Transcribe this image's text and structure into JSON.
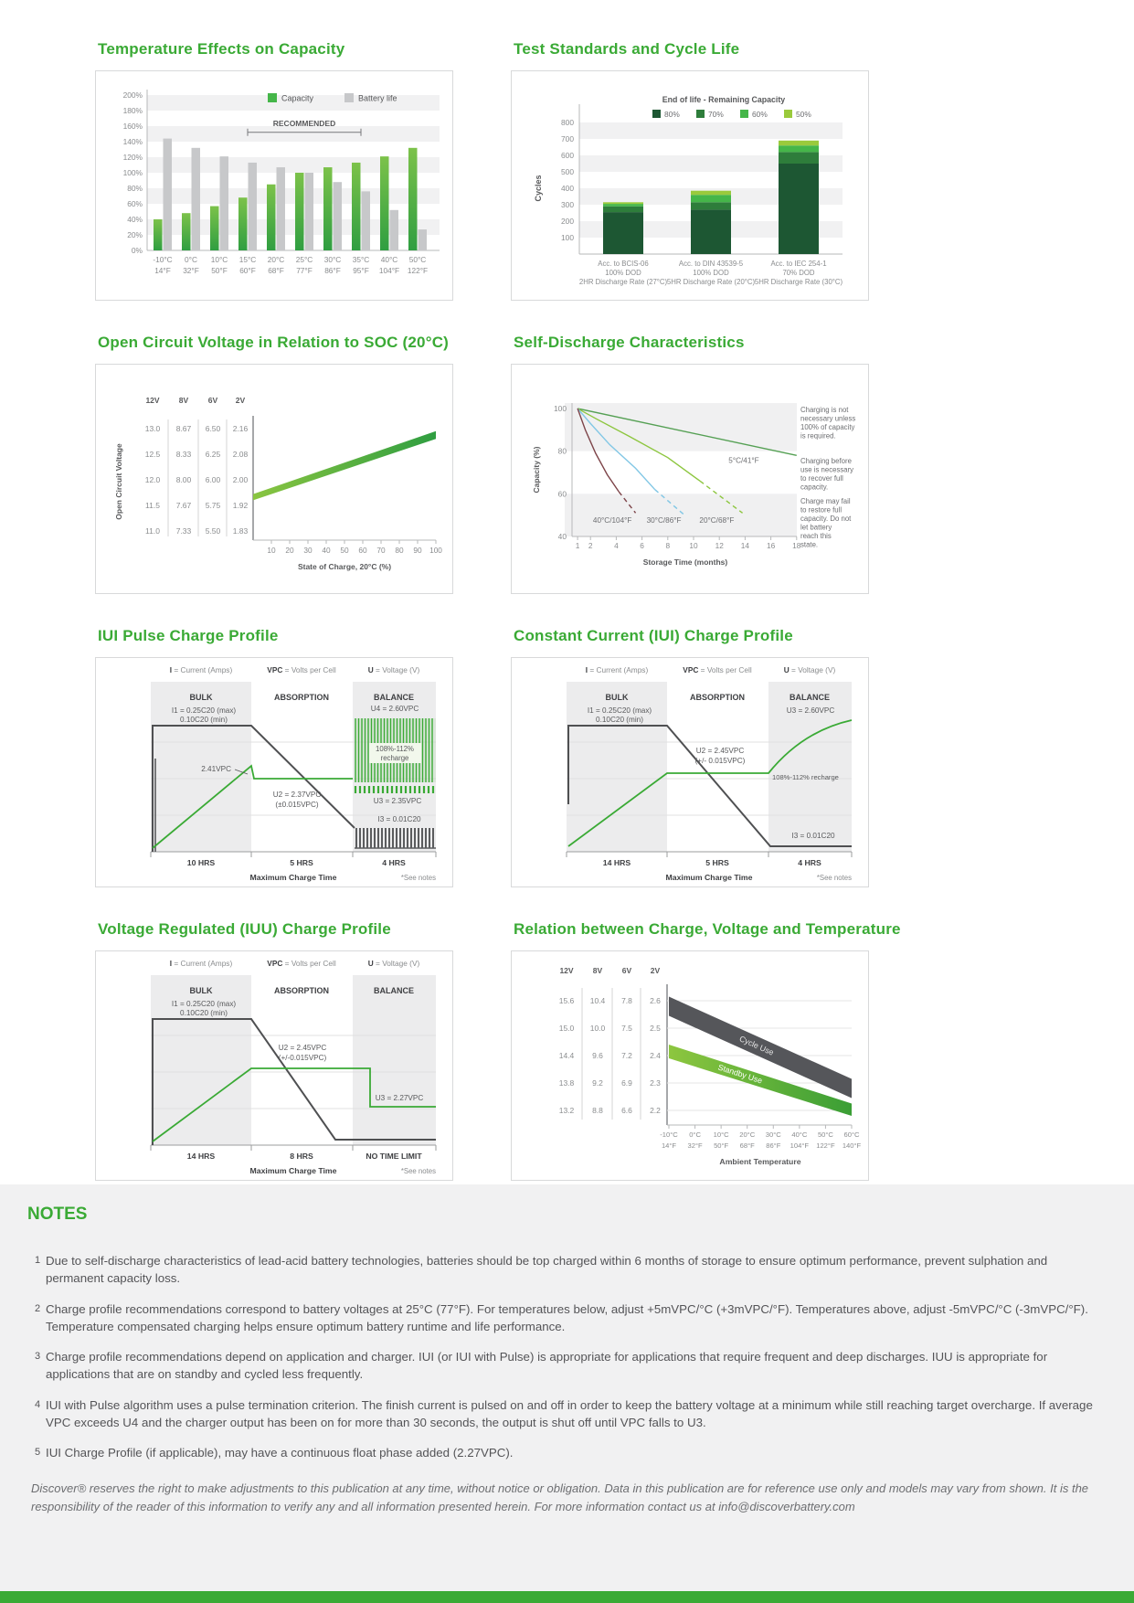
{
  "page": {
    "notes_heading": "NOTES",
    "notes": [
      {
        "num": "1",
        "text": "Due to self-discharge characteristics of lead-acid battery technologies, batteries should be top charged within 6 months of storage to ensure optimum performance, prevent sulphation and permanent capacity loss."
      },
      {
        "num": "2",
        "text": "Charge profile recommendations correspond to battery voltages at 25°C (77°F). For temperatures below, adjust +5mVPC/°C (+3mVPC/°F). Temperatures above, adjust -5mVPC/°C (-3mVPC/°F). Temperature compensated charging helps ensure optimum battery runtime and life performance."
      },
      {
        "num": "3",
        "text": "Charge profile recommendations depend on application and charger. IUI (or IUI with Pulse) is appropriate for applications that require frequent and deep discharges. IUU is appropriate for applications that are on standby and cycled less frequently."
      },
      {
        "num": "4",
        "text": "IUI with Pulse algorithm uses a pulse termination criterion. The finish current is pulsed on and off in order to keep the battery voltage at a minimum while still reaching target overcharge. If average VPC exceeds U4 and the charger output has been on for more than 30 seconds, the output is shut off until VPC falls to U3."
      },
      {
        "num": "5",
        "text": "IUI Charge Profile (if applicable), may have a continuous float phase added (2.27VPC)."
      }
    ],
    "disclaimer": "Discover® reserves the right to make adjustments to this publication at any time, without notice or obligation. Data in this publication are for reference use only and models may vary from shown. It is the responsibility of the reader of this information to verify any and all information presented herein. For more information contact us at info@discoverbattery.com"
  },
  "colors": {
    "brand_green": "#3aaa35",
    "bar_gray": "#c7c8ca",
    "dark_band": "#55565a",
    "notes_bg": "#f1f1f2"
  },
  "chart_data": [
    {
      "renderer": "tempCapacity",
      "type": "bar",
      "title": "Temperature Effects on Capacity",
      "legend": [
        "Capacity",
        "Battery life"
      ],
      "categories_c": [
        "-10°C",
        "0°C",
        "10°C",
        "15°C",
        "20°C",
        "25°C",
        "30°C",
        "35°C",
        "40°C",
        "50°C"
      ],
      "categories_f": [
        "14°F",
        "32°F",
        "50°F",
        "60°F",
        "68°F",
        "77°F",
        "86°F",
        "95°F",
        "104°F",
        "122°F"
      ],
      "bar_top": "#7cc24a",
      "bar_bottom": "#2f9e41",
      "gray": "#c7c8ca",
      "series": [
        {
          "name": "Capacity",
          "values": [
            40,
            48,
            57,
            68,
            85,
            100,
            107,
            113,
            121,
            132
          ]
        },
        {
          "name": "Battery life",
          "values": [
            144,
            132,
            121,
            113,
            107,
            100,
            88,
            76,
            52,
            27
          ]
        }
      ],
      "ylim": [
        0,
        200
      ],
      "ytick_step": 20,
      "ytick_suffix": "%",
      "annotation": {
        "label": "RECOMMENDED",
        "from_index": 3,
        "to_index": 7,
        "at_value": 152
      }
    },
    {
      "renderer": "cycleLife",
      "type": "stacked-bar",
      "title": "Test Standards and Cycle Life",
      "legend_title": "End of life - Remaining Capacity",
      "legend": [
        {
          "label": "80%",
          "color": "#1d5733"
        },
        {
          "label": "70%",
          "color": "#2e7d3b"
        },
        {
          "label": "60%",
          "color": "#45b649"
        },
        {
          "label": "50%",
          "color": "#9aca3c"
        }
      ],
      "ylabel": "Cycles",
      "yticks": [
        100,
        200,
        300,
        400,
        500,
        600,
        700,
        800
      ],
      "categories": [
        [
          "Acc. to BCIS-06",
          "100% DOD",
          "2HR Discharge Rate (27°C)"
        ],
        [
          "Acc. to DIN 43539-5",
          "100% DOD",
          "5HR Discharge Rate (20°C)"
        ],
        [
          "Acc. to IEC 254-1",
          "70% DOD",
          "5HR Discharge Rate (30°C)"
        ]
      ],
      "cumulative": [
        [
          255,
          290,
          305,
          315
        ],
        [
          270,
          315,
          360,
          385
        ],
        [
          550,
          620,
          660,
          690
        ]
      ]
    },
    {
      "renderer": "ocv",
      "type": "band-line",
      "title": "Open Circuit Voltage in Relation to SOC (20°C)",
      "voltage_columns": [
        "12V",
        "8V",
        "6V",
        "2V"
      ],
      "voltage_rows": [
        [
          "13.0",
          "8.67",
          "6.50",
          "2.16"
        ],
        [
          "12.5",
          "8.33",
          "6.25",
          "2.08"
        ],
        [
          "12.0",
          "8.00",
          "6.00",
          "2.00"
        ],
        [
          "11.5",
          "7.67",
          "5.75",
          "1.92"
        ],
        [
          "11.0",
          "7.33",
          "5.50",
          "1.83"
        ]
      ],
      "ylabel": "Open Circuit Voltage",
      "xlabel": "State of Charge, 20°C (%)",
      "xticks": [
        10,
        20,
        30,
        40,
        50,
        60,
        70,
        80,
        90,
        100
      ],
      "band": {
        "x": [
          0,
          100
        ],
        "top": [
          11.72,
          12.95
        ],
        "bottom": [
          11.6,
          12.8
        ]
      }
    },
    {
      "renderer": "selfDischarge",
      "type": "line",
      "title": "Self-Discharge Characteristics",
      "ylabel": "Capacity (%)",
      "xlabel": "Storage Time (months)",
      "yticks": [
        40,
        60,
        80,
        100
      ],
      "xticks": [
        1,
        2,
        4,
        6,
        8,
        10,
        12,
        14,
        16,
        18
      ],
      "series": [
        {
          "label": "5°C/41°F",
          "color": "#55a054",
          "solid": [
            [
              1,
              100
            ],
            [
              18,
              78
            ]
          ],
          "dashed": [],
          "label_pos": [
            13.9,
            74.5
          ]
        },
        {
          "label": "20°C/68°F",
          "color": "#8dc63f",
          "solid": [
            [
              1,
              100
            ],
            [
              2.5,
              95
            ],
            [
              5,
              87
            ],
            [
              8,
              77
            ],
            [
              10.5,
              66
            ]
          ],
          "dashed": [
            [
              10.5,
              66
            ],
            [
              13.8,
              51
            ]
          ],
          "label_pos": [
            11.8,
            46.5
          ]
        },
        {
          "label": "30°C/86°F",
          "color": "#82c7e5",
          "solid": [
            [
              1,
              100
            ],
            [
              2,
              93
            ],
            [
              3.5,
              83
            ],
            [
              5.5,
              72
            ],
            [
              7,
              62
            ]
          ],
          "dashed": [
            [
              7,
              62
            ],
            [
              9.3,
              50
            ]
          ],
          "label_pos": [
            7.7,
            46.5
          ]
        },
        {
          "label": "40°C/104°F",
          "color": "#7d4449",
          "solid": [
            [
              1,
              100
            ],
            [
              1.6,
              90
            ],
            [
              2.4,
              79
            ],
            [
              3.3,
              69
            ],
            [
              4.2,
              61
            ]
          ],
          "dashed": [
            [
              4.2,
              61
            ],
            [
              5.5,
              51
            ]
          ],
          "label_pos": [
            3.7,
            46.5
          ]
        }
      ],
      "annotations": [
        "Charging is not necessary unless 100% of capacity is required.",
        "Charging before use is necessary to recover full capacity.",
        "Charge may fail to restore full capacity. Do not let battery reach this state."
      ]
    },
    {
      "renderer": "profile",
      "type": "line",
      "variant": "pulse",
      "title": "IUI Pulse Charge Profile",
      "units": [
        [
          "I",
          " = Current (Amps)"
        ],
        [
          "VPC",
          " = Volts per Cell"
        ],
        [
          "U",
          " = Voltage (V)"
        ]
      ],
      "phases": [
        "BULK",
        "ABSORPTION",
        "BALANCE"
      ],
      "annotations": {
        "i1": "I1 = 0.25C20 (max)",
        "i1b": "0.10C20 (min)",
        "u4": "U4 = 2.60VPC",
        "peak": "2.41VPC",
        "u2": "U2 = 2.37VPC",
        "u2b": "(±0.015VPC)",
        "u3": "U3 = 2.35VPC",
        "i3": "I3 = 0.01C20",
        "recharge1": "108%-112%",
        "recharge2": "recharge"
      },
      "durations": [
        "10 HRS",
        "5 HRS",
        "4 HRS"
      ],
      "xlabel": "Maximum Charge Time",
      "note": "*See notes"
    },
    {
      "renderer": "profile",
      "type": "line",
      "variant": "cc",
      "title": "Constant Current (IUI) Charge Profile",
      "units": [
        [
          "I",
          " = Current (Amps)"
        ],
        [
          "VPC",
          " = Volts per Cell"
        ],
        [
          "U",
          " = Voltage (V)"
        ]
      ],
      "phases": [
        "BULK",
        "ABSORPTION",
        "BALANCE"
      ],
      "annotations": {
        "i1": "I1 = 0.25C20 (max)",
        "i1b": "0.10C20 (min)",
        "u3t": "U3 = 2.60VPC",
        "u2": "U2 = 2.45VPC",
        "u2b": "(+/- 0.015VPC)",
        "i3": "I3 = 0.01C20",
        "recharge": "108%-112% recharge"
      },
      "durations": [
        "14 HRS",
        "5 HRS",
        "4 HRS"
      ],
      "xlabel": "Maximum Charge Time",
      "note": "*See notes"
    },
    {
      "renderer": "profile",
      "type": "line",
      "variant": "iuu",
      "title": "Voltage Regulated (IUU) Charge Profile",
      "units": [
        [
          "I",
          " = Current (Amps)"
        ],
        [
          "VPC",
          " = Volts per Cell"
        ],
        [
          "U",
          " = Voltage (V)"
        ]
      ],
      "phases": [
        "BULK",
        "ABSORPTION",
        "BALANCE"
      ],
      "annotations": {
        "i1": "I1 = 0.25C20 (max)",
        "i1b": "0.10C20 (min)",
        "u2": "U2 = 2.45VPC",
        "u2b": "(+/-0.015VPC)",
        "u3": "U3 = 2.27VPC"
      },
      "durations": [
        "14 HRS",
        "8 HRS",
        "NO TIME LIMIT"
      ],
      "xlabel": "Maximum Charge Time",
      "note": "*See notes"
    },
    {
      "renderer": "tempVoltage",
      "type": "band-line",
      "title": "Relation between Charge, Voltage and Temperature",
      "voltage_columns": [
        "12V",
        "8V",
        "6V",
        "2V"
      ],
      "voltage_rows": [
        [
          "15.6",
          "10.4",
          "7.8",
          "2.6"
        ],
        [
          "15.0",
          "10.0",
          "7.5",
          "2.5"
        ],
        [
          "14.4",
          "9.6",
          "7.2",
          "2.4"
        ],
        [
          "13.8",
          "9.2",
          "6.9",
          "2.3"
        ],
        [
          "13.2",
          "8.8",
          "6.6",
          "2.2"
        ]
      ],
      "categories_c": [
        "-10°C",
        "0°C",
        "10°C",
        "20°C",
        "30°C",
        "40°C",
        "50°C",
        "60°C"
      ],
      "categories_f": [
        "14°F",
        "32°F",
        "50°F",
        "68°F",
        "86°F",
        "104°F",
        "122°F",
        "140°F"
      ],
      "xlabel": "Ambient Temperature",
      "bands": [
        {
          "label": "Cycle Use",
          "color": "#55565a",
          "left_top": 2.615,
          "left_bottom": 2.545,
          "right_top": 2.315,
          "right_bottom": 2.245
        },
        {
          "label": "Standby Use",
          "color_from": "#8dc63f",
          "color_to": "#3a9e35",
          "left_top": 2.44,
          "left_bottom": 2.39,
          "right_top": 2.225,
          "right_bottom": 2.18
        }
      ]
    }
  ]
}
